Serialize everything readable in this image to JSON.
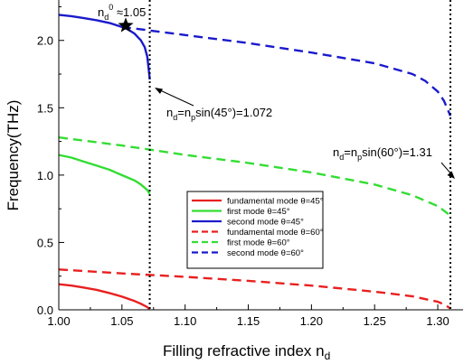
{
  "chart_data": {
    "type": "line",
    "xlabel": "Filling refractive index n",
    "xlabel_sub": "d",
    "ylabel": "Frequency(THz)",
    "xlim": [
      1.0,
      1.32
    ],
    "ylim": [
      0.0,
      2.3
    ],
    "xticks": [
      1.0,
      1.05,
      1.1,
      1.15,
      1.2,
      1.25,
      1.3
    ],
    "xtick_labels": [
      "1.00",
      "1.05",
      "1.10",
      "1.15",
      "1.20",
      "1.25",
      "1.30"
    ],
    "yticks": [
      0.0,
      0.5,
      1.0,
      1.5,
      2.0
    ],
    "ytick_labels": [
      "0.0",
      "0.5",
      "1.0",
      "1.5",
      "2.0"
    ],
    "grid": false,
    "legend_position": "lower-right",
    "series": [
      {
        "name": "fundamental mode θ=45°",
        "color": "#e82020",
        "dash": "solid",
        "x": [
          1.0,
          1.01,
          1.02,
          1.03,
          1.04,
          1.05,
          1.06,
          1.065,
          1.07,
          1.072
        ],
        "y": [
          0.19,
          0.18,
          0.165,
          0.148,
          0.125,
          0.098,
          0.065,
          0.045,
          0.02,
          0.005
        ]
      },
      {
        "name": "first mode θ=45°",
        "color": "#33dd33",
        "dash": "solid",
        "x": [
          1.0,
          1.01,
          1.02,
          1.03,
          1.04,
          1.05,
          1.06,
          1.065,
          1.07,
          1.072
        ],
        "y": [
          1.15,
          1.13,
          1.1,
          1.07,
          1.04,
          1.0,
          0.96,
          0.93,
          0.89,
          0.86
        ]
      },
      {
        "name": "second mode θ=45°",
        "color": "#1a1acc",
        "dash": "solid",
        "x": [
          1.0,
          1.01,
          1.02,
          1.03,
          1.04,
          1.05,
          1.055,
          1.06,
          1.065,
          1.068,
          1.07,
          1.071,
          1.072
        ],
        "y": [
          2.19,
          2.18,
          2.165,
          2.15,
          2.13,
          2.1,
          2.08,
          2.05,
          2.0,
          1.95,
          1.88,
          1.8,
          1.71
        ]
      },
      {
        "name": "fundamental mode θ=60°",
        "color": "#e82020",
        "dash": "dashed",
        "x": [
          1.0,
          1.05,
          1.1,
          1.15,
          1.2,
          1.25,
          1.28,
          1.3,
          1.305,
          1.31
        ],
        "y": [
          0.3,
          0.27,
          0.245,
          0.215,
          0.18,
          0.135,
          0.1,
          0.06,
          0.04,
          0.01
        ]
      },
      {
        "name": "first mode θ=60°",
        "color": "#33dd33",
        "dash": "dashed",
        "x": [
          1.0,
          1.05,
          1.1,
          1.15,
          1.2,
          1.25,
          1.28,
          1.3,
          1.31
        ],
        "y": [
          1.28,
          1.22,
          1.15,
          1.09,
          1.02,
          0.93,
          0.85,
          0.77,
          0.7
        ]
      },
      {
        "name": "second mode θ=60°",
        "color": "#1a1acc",
        "dash": "dashed",
        "x": [
          1.05,
          1.1,
          1.15,
          1.2,
          1.25,
          1.28,
          1.29,
          1.3,
          1.305,
          1.31
        ],
        "y": [
          2.1,
          2.04,
          1.98,
          1.91,
          1.83,
          1.75,
          1.7,
          1.62,
          1.55,
          1.44
        ]
      }
    ],
    "vlines": [
      1.072,
      1.31
    ],
    "star": {
      "x": 1.053,
      "y": 2.11
    },
    "annotations": {
      "star_label": {
        "main": "n",
        "sub": "d",
        "sup": "0",
        "rest": " ≈1.05"
      },
      "line1_label": {
        "a": "n",
        "a_sub": "d",
        "b": "=n",
        "b_sub": "p",
        "c": "sin(45°)=1.072"
      },
      "line2_label": {
        "a": "n",
        "a_sub": "d",
        "b": "=n",
        "b_sub": "p",
        "c": "sin(60°)=1.31"
      }
    }
  }
}
